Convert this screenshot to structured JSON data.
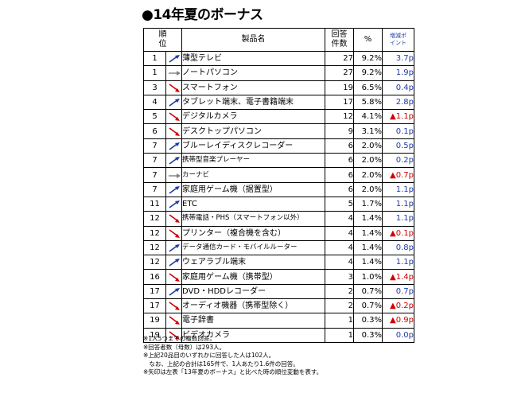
{
  "title": "●14年夏のボーナス",
  "header": {
    "rank": "順\n位",
    "product": "製品名",
    "count": "回答\n件数",
    "pct": "%",
    "points": "増減ポ\nイント"
  },
  "colors": {
    "up": "#1f3aa8",
    "down": "#d00000",
    "same": "#808080"
  },
  "rows": [
    {
      "rank": "1",
      "arrow": "up",
      "name": "薄型テレビ",
      "count": "27",
      "pct": "9.2%",
      "points": "3.7p",
      "dir": "up"
    },
    {
      "rank": "1",
      "arrow": "same",
      "name": "ノートパソコン",
      "count": "27",
      "pct": "9.2%",
      "points": "1.9p",
      "dir": "up"
    },
    {
      "rank": "3",
      "arrow": "down",
      "name": "スマートフォン",
      "count": "19",
      "pct": "6.5%",
      "points": "0.4p",
      "dir": "up"
    },
    {
      "rank": "4",
      "arrow": "up",
      "name": "タブレット端末、電子書籍端末",
      "count": "17",
      "pct": "5.8%",
      "points": "2.8p",
      "dir": "up"
    },
    {
      "rank": "5",
      "arrow": "down",
      "name": "デジタルカメラ",
      "count": "12",
      "pct": "4.1%",
      "points": "▲1.1p",
      "dir": "down"
    },
    {
      "rank": "6",
      "arrow": "down",
      "name": "デスクトップパソコン",
      "count": "9",
      "pct": "3.1%",
      "points": "0.1p",
      "dir": "up"
    },
    {
      "rank": "7",
      "arrow": "up",
      "name": "ブルーレイディスクレコーダー",
      "count": "6",
      "pct": "2.0%",
      "points": "0.5p",
      "dir": "up"
    },
    {
      "rank": "7",
      "arrow": "up",
      "name": "携帯型音楽プレーヤー",
      "count": "6",
      "pct": "2.0%",
      "points": "0.2p",
      "dir": "up",
      "small": true
    },
    {
      "rank": "7",
      "arrow": "same",
      "name": "カーナビ",
      "count": "6",
      "pct": "2.0%",
      "points": "▲0.7p",
      "dir": "down",
      "small": true
    },
    {
      "rank": "7",
      "arrow": "up",
      "name": "家庭用ゲーム機（据置型）",
      "count": "6",
      "pct": "2.0%",
      "points": "1.1p",
      "dir": "up"
    },
    {
      "rank": "11",
      "arrow": "up",
      "name": "ETC",
      "count": "5",
      "pct": "1.7%",
      "points": "1.1p",
      "dir": "up"
    },
    {
      "rank": "12",
      "arrow": "down",
      "name": "携帯電話・PHS（スマートフォン以外）",
      "count": "4",
      "pct": "1.4%",
      "points": "1.1p",
      "dir": "up",
      "small": true
    },
    {
      "rank": "12",
      "arrow": "down",
      "name": "プリンター（複合機を含む）",
      "count": "4",
      "pct": "1.4%",
      "points": "▲0.1p",
      "dir": "down"
    },
    {
      "rank": "12",
      "arrow": "up",
      "name": "データ通信カード・モバイルルーター",
      "count": "4",
      "pct": "1.4%",
      "points": "0.8p",
      "dir": "up",
      "small": true
    },
    {
      "rank": "12",
      "arrow": "up",
      "name": "ウェアラブル端末",
      "count": "4",
      "pct": "1.4%",
      "points": "1.1p",
      "dir": "up"
    },
    {
      "rank": "16",
      "arrow": "down",
      "name": "家庭用ゲーム機（携帯型）",
      "count": "3",
      "pct": "1.0%",
      "points": "▲1.4p",
      "dir": "down"
    },
    {
      "rank": "17",
      "arrow": "up",
      "name": "DVD・HDDレコーダー",
      "count": "2",
      "pct": "0.7%",
      "points": "0.7p",
      "dir": "up"
    },
    {
      "rank": "17",
      "arrow": "down",
      "name": "オーディオ機器（携帯型除く）",
      "count": "2",
      "pct": "0.7%",
      "points": "▲0.2p",
      "dir": "down"
    },
    {
      "rank": "19",
      "arrow": "down",
      "name": "電子辞書",
      "count": "1",
      "pct": "0.3%",
      "points": "▲0.9p",
      "dir": "down"
    },
    {
      "rank": "19",
      "arrow": "down",
      "name": "ビデオカメラ",
      "count": "1",
      "pct": "0.3%",
      "points": "0.0p",
      "dir": "up"
    }
  ],
  "notes": [
    "※1人5つまでの複数回答。",
    "※回答者数（母数）は293人。",
    "※上記20品目のいずれかに回答した人は102人。",
    "　なお、上記の合計は165件で、1人あたり1.6件の回答。",
    "※矢印は左表「13年夏のボーナス」と比べた時の順位変動を表す。"
  ]
}
